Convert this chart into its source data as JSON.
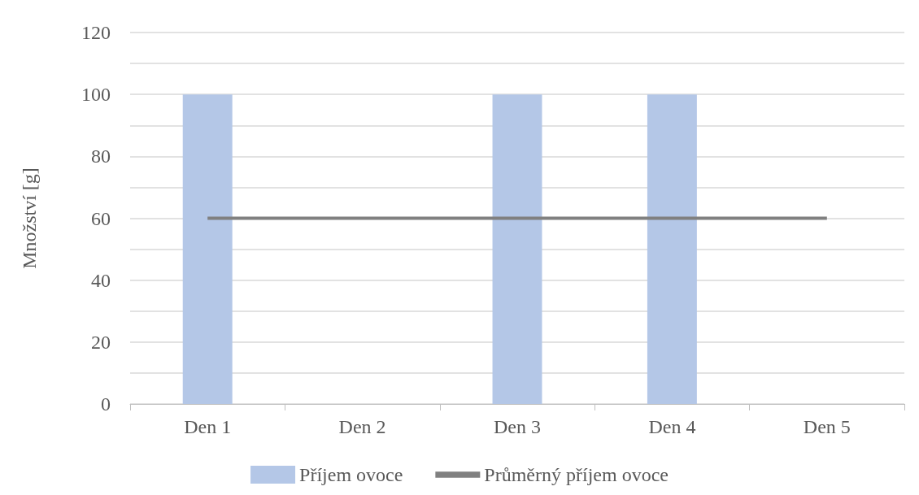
{
  "chart_data": {
    "type": "bar",
    "ylabel": "Množství [g]",
    "categories": [
      "Den 1",
      "Den 2",
      "Den 3",
      "Den 4",
      "Den 5"
    ],
    "series": [
      {
        "name": "Příjem ovoce",
        "color": "#b4c7e7",
        "values": [
          100,
          0,
          100,
          100,
          0
        ]
      },
      {
        "name": "Průměrný příjem ovoce",
        "type": "line",
        "color": "#808080",
        "values": [
          60,
          60,
          60,
          60,
          60
        ]
      }
    ],
    "ylim": [
      0,
      120
    ],
    "yticks": [
      0,
      {
        "value": 10,
        "label": null
      },
      20,
      {
        "value": 30,
        "label": null
      },
      40,
      {
        "value": 50,
        "label": null
      },
      60,
      {
        "value": 70,
        "label": null
      },
      80,
      {
        "value": 90,
        "label": null
      },
      100,
      {
        "value": 110,
        "label": null
      },
      120
    ],
    "grid": "y",
    "legend": "bottom",
    "marker": "none"
  }
}
